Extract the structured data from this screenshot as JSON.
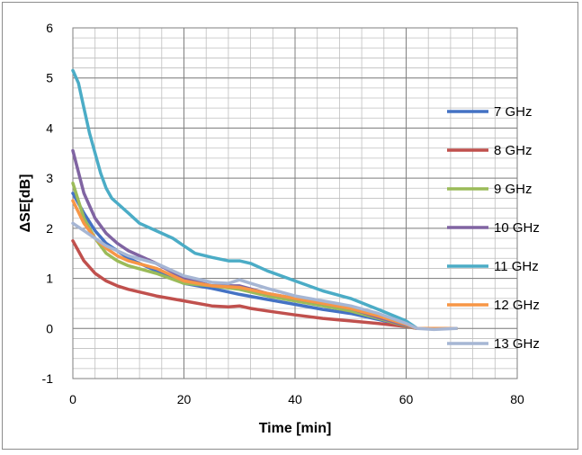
{
  "chart_data": {
    "type": "line",
    "title": "",
    "xlabel": "Time [min]",
    "ylabel": "ΔSE[dB]",
    "xlim": [
      0,
      80
    ],
    "ylim": [
      -1,
      6
    ],
    "xticks": [
      0,
      20,
      40,
      60,
      80
    ],
    "yticks": [
      -1,
      0,
      1,
      2,
      3,
      4,
      5,
      6
    ],
    "grid": true,
    "legend_position": "right",
    "series": [
      {
        "name": "7 GHz",
        "color": "#4472c4",
        "x": [
          0,
          2,
          4,
          6,
          8,
          10,
          15,
          20,
          25,
          30,
          35,
          40,
          45,
          50,
          55,
          60,
          62,
          65,
          69
        ],
        "y": [
          2.7,
          2.3,
          1.95,
          1.7,
          1.55,
          1.4,
          1.15,
          0.9,
          0.8,
          0.68,
          0.58,
          0.48,
          0.38,
          0.3,
          0.18,
          0.05,
          0,
          0,
          0
        ]
      },
      {
        "name": "8 GHz",
        "color": "#c0504d",
        "x": [
          0,
          2,
          4,
          6,
          8,
          10,
          15,
          20,
          25,
          28,
          30,
          32,
          35,
          40,
          45,
          50,
          55,
          60,
          62,
          65,
          69
        ],
        "y": [
          1.75,
          1.35,
          1.1,
          0.95,
          0.85,
          0.78,
          0.65,
          0.55,
          0.45,
          0.43,
          0.45,
          0.4,
          0.35,
          0.27,
          0.2,
          0.15,
          0.1,
          0.04,
          0,
          0,
          0
        ]
      },
      {
        "name": "9 GHz",
        "color": "#9bbb59",
        "x": [
          0,
          2,
          4,
          6,
          8,
          10,
          15,
          20,
          25,
          30,
          35,
          40,
          45,
          50,
          55,
          60,
          62,
          65,
          69
        ],
        "y": [
          2.9,
          2.2,
          1.8,
          1.5,
          1.35,
          1.25,
          1.1,
          0.9,
          0.85,
          0.78,
          0.65,
          0.55,
          0.45,
          0.35,
          0.2,
          0.05,
          0,
          0,
          0
        ]
      },
      {
        "name": "10 GHz",
        "color": "#8064a2",
        "x": [
          0,
          2,
          4,
          6,
          8,
          10,
          15,
          20,
          25,
          30,
          35,
          40,
          45,
          50,
          55,
          60,
          62,
          65,
          69
        ],
        "y": [
          3.55,
          2.7,
          2.2,
          1.9,
          1.7,
          1.55,
          1.3,
          1.0,
          0.85,
          0.85,
          0.7,
          0.6,
          0.5,
          0.4,
          0.22,
          0.06,
          0,
          0,
          0
        ]
      },
      {
        "name": "11 GHz",
        "color": "#4bacc6",
        "x": [
          0,
          1,
          2,
          3,
          4,
          5,
          6,
          7,
          8,
          10,
          12,
          15,
          18,
          20,
          22,
          25,
          28,
          30,
          32,
          35,
          40,
          45,
          50,
          55,
          60,
          62,
          65,
          69
        ],
        "y": [
          5.15,
          4.9,
          4.4,
          3.9,
          3.5,
          3.1,
          2.8,
          2.6,
          2.5,
          2.3,
          2.1,
          1.95,
          1.8,
          1.65,
          1.5,
          1.42,
          1.35,
          1.35,
          1.3,
          1.15,
          0.95,
          0.75,
          0.6,
          0.38,
          0.15,
          0,
          0,
          0
        ]
      },
      {
        "name": "12 GHz",
        "color": "#f79646",
        "x": [
          0,
          2,
          4,
          6,
          8,
          10,
          15,
          20,
          25,
          30,
          35,
          40,
          45,
          50,
          55,
          60,
          62,
          65,
          69
        ],
        "y": [
          2.55,
          2.1,
          1.8,
          1.6,
          1.45,
          1.35,
          1.2,
          0.95,
          0.85,
          0.82,
          0.7,
          0.6,
          0.5,
          0.4,
          0.25,
          0.08,
          0,
          0,
          0
        ]
      },
      {
        "name": "13 GHz",
        "color": "#a6b6d4",
        "x": [
          0,
          2,
          4,
          6,
          8,
          10,
          15,
          20,
          25,
          28,
          30,
          32,
          35,
          40,
          45,
          50,
          55,
          60,
          62,
          65,
          69
        ],
        "y": [
          2.1,
          1.95,
          1.8,
          1.65,
          1.55,
          1.45,
          1.3,
          1.05,
          0.92,
          0.9,
          0.97,
          0.9,
          0.8,
          0.65,
          0.55,
          0.45,
          0.3,
          0.1,
          0.0,
          -0.02,
          0
        ]
      }
    ]
  }
}
